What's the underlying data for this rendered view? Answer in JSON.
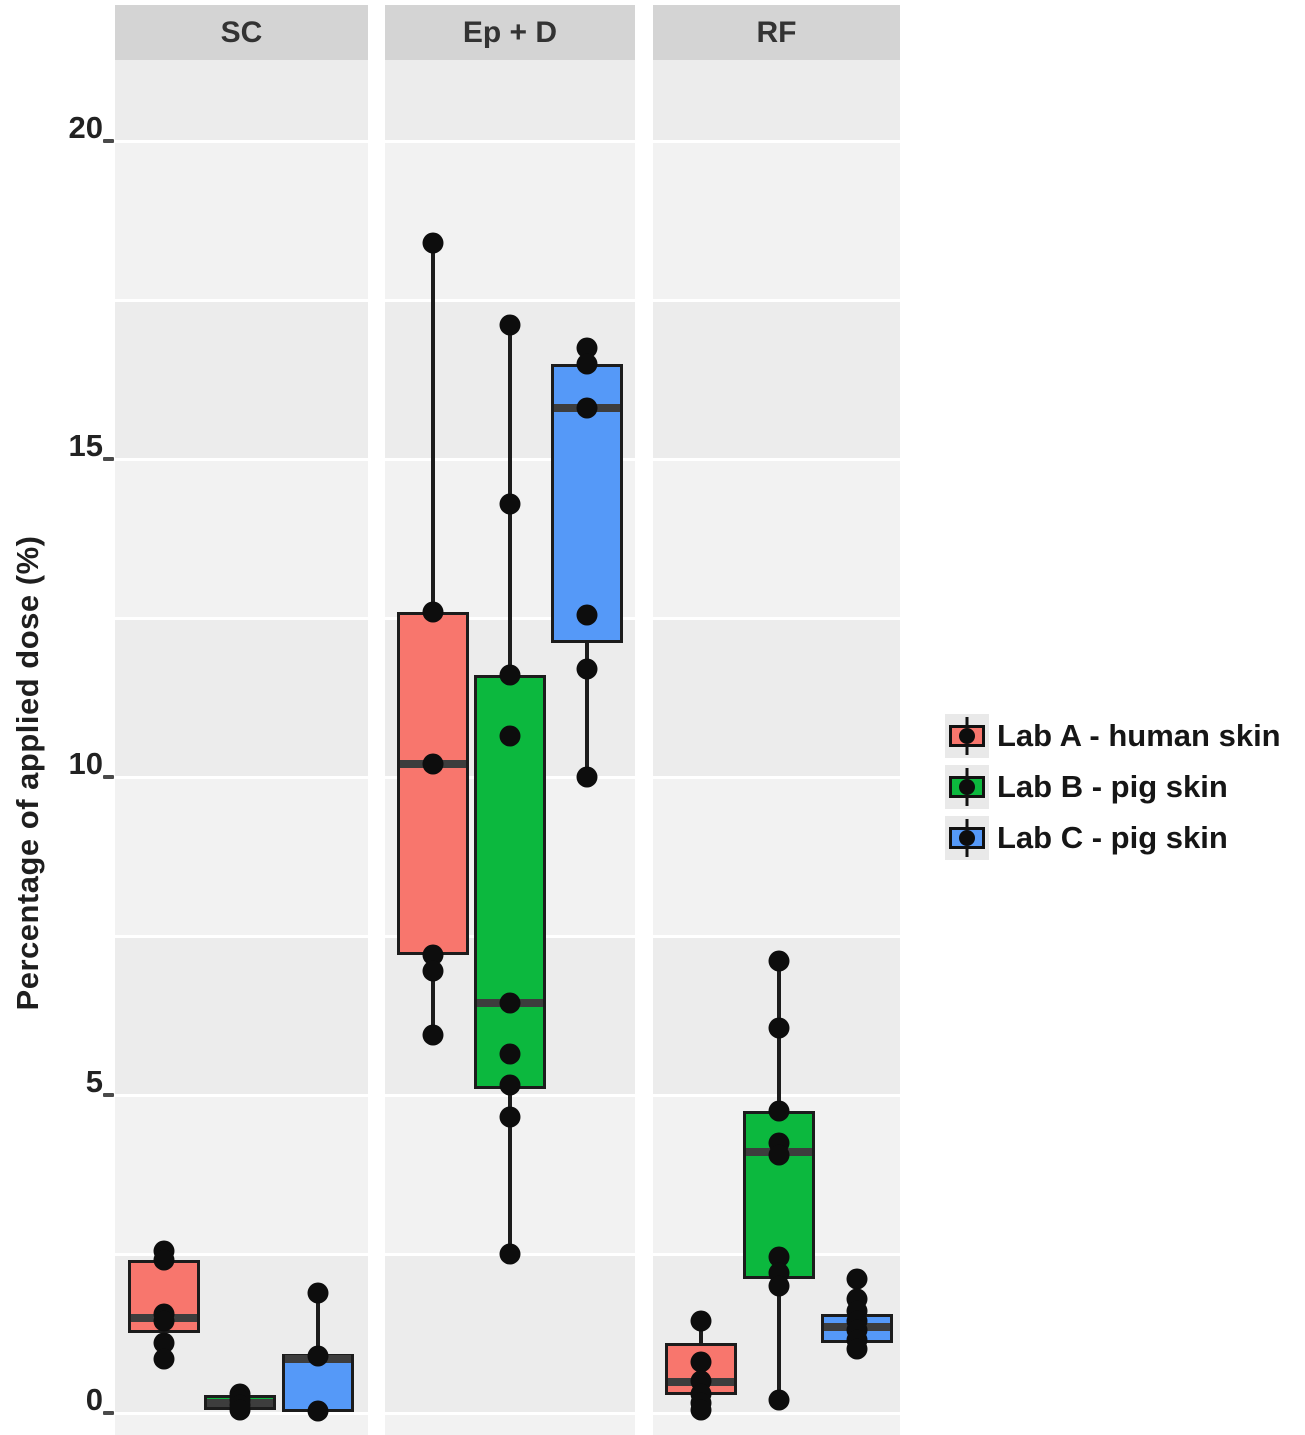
{
  "figure": {
    "y_axis_title": "Percentage of applied dose (%)"
  },
  "chart_data": {
    "type": "boxplot",
    "title": "",
    "xlabel": "",
    "ylabel": "Percentage of applied dose (%)",
    "ylim": [
      0,
      21.3
    ],
    "y_ticks": [
      0,
      5,
      10,
      15,
      20
    ],
    "gridline_step": 2.5,
    "grid": true,
    "legend_position": "right",
    "facets": [
      "SC",
      "Ep + D",
      "RF"
    ],
    "groups": [
      {
        "name": "Lab A - human skin",
        "color": "#f8766d",
        "data": {
          "SC": {
            "q1": 1.25,
            "median": 1.5,
            "q3": 2.4,
            "whisker_low": null,
            "whisker_high": null,
            "points": [
              2.55,
              2.4,
              1.55,
              1.45,
              1.1,
              0.85
            ]
          },
          "Ep + D": {
            "q1": 7.2,
            "median": 10.2,
            "q3": 12.6,
            "whisker_low": 5.95,
            "whisker_high": 18.4,
            "points": [
              18.4,
              12.6,
              10.2,
              7.2,
              6.95,
              5.95
            ]
          },
          "RF": {
            "q1": 0.28,
            "median": 0.48,
            "q3": 1.1,
            "whisker_low": null,
            "whisker_high": 1.45,
            "points": [
              1.45,
              0.8,
              0.5,
              0.3,
              0.15,
              0.05
            ]
          }
        }
      },
      {
        "name": "Lab B - pig skin",
        "color": "#0cb83e",
        "data": {
          "SC": {
            "q1": 0.05,
            "median": 0.15,
            "q3": 0.28,
            "whisker_low": null,
            "whisker_high": null,
            "points": [
              0.3,
              0.2,
              0.12,
              0.05
            ]
          },
          "Ep + D": {
            "q1": 5.1,
            "median": 6.45,
            "q3": 11.6,
            "whisker_low": 2.5,
            "whisker_high": 17.1,
            "points": [
              17.1,
              14.3,
              11.6,
              10.65,
              6.45,
              5.65,
              5.15,
              4.65,
              2.5
            ]
          },
          "RF": {
            "q1": 2.1,
            "median": 4.1,
            "q3": 4.75,
            "whisker_low": 0.2,
            "whisker_high": 7.1,
            "points": [
              7.1,
              6.05,
              4.75,
              4.25,
              4.05,
              2.45,
              2.2,
              2.0,
              0.2
            ]
          }
        }
      },
      {
        "name": "Lab C - pig skin",
        "color": "#5599f8",
        "data": {
          "SC": {
            "q1": 0.02,
            "median": 0.85,
            "q3": 0.92,
            "whisker_low": null,
            "whisker_high": 1.88,
            "points": [
              1.88,
              0.9,
              0.03
            ]
          },
          "Ep + D": {
            "q1": 12.1,
            "median": 15.8,
            "q3": 16.5,
            "whisker_low": 10.0,
            "whisker_high": null,
            "points": [
              16.75,
              16.5,
              15.8,
              12.55,
              11.7,
              10.0
            ]
          },
          "RF": {
            "q1": 1.1,
            "median": 1.35,
            "q3": 1.55,
            "whisker_low": null,
            "whisker_high": 2.1,
            "points": [
              2.1,
              1.8,
              1.6,
              1.45,
              1.3,
              1.15,
              1.0
            ]
          }
        }
      }
    ]
  }
}
